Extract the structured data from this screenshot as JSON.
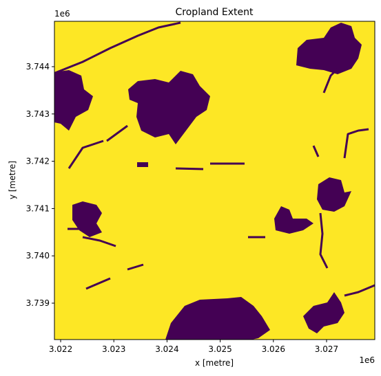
{
  "chart_data": {
    "type": "image",
    "title": "Cropland Extent",
    "xlabel": "x [metre]",
    "ylabel": "y [metre]",
    "x_offset_label": "1e6",
    "y_offset_label": "1e6",
    "xlim": [
      3021883,
      3027907
    ],
    "ylim": [
      3738230,
      3744959
    ],
    "xticks": [
      {
        "value": 3022000,
        "label": "3.022"
      },
      {
        "value": 3023000,
        "label": "3.023"
      },
      {
        "value": 3024000,
        "label": "3.024"
      },
      {
        "value": 3025000,
        "label": "3.025"
      },
      {
        "value": 3026000,
        "label": "3.026"
      },
      {
        "value": 3027000,
        "label": "3.027"
      }
    ],
    "yticks": [
      {
        "value": 3739000,
        "label": "3.739"
      },
      {
        "value": 3740000,
        "label": "3.740"
      },
      {
        "value": 3741000,
        "label": "3.741"
      },
      {
        "value": 3742000,
        "label": "3.742"
      },
      {
        "value": 3743000,
        "label": "3.743"
      },
      {
        "value": 3744000,
        "label": "3.744"
      }
    ],
    "background_color": "#fde725",
    "feature_color": "#440154"
  }
}
